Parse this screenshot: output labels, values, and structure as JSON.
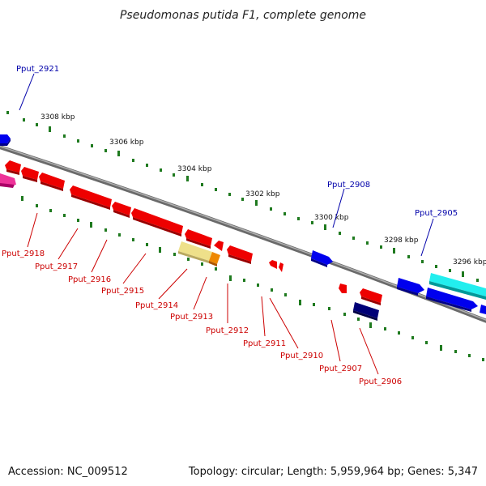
{
  "title": "Pseudomonas putida F1, complete genome",
  "footer": {
    "accession": "Accession: NC_009512",
    "summary": "Topology: circular; Length: 5,959,964 bp; Genes: 5,347"
  },
  "colors": {
    "backbone": "#8a8a8a",
    "tick": "#1f7a1f",
    "label_forward": "#0000aa",
    "label_reverse": "#cc0000"
  },
  "scale_labels": [
    "3308 kbp",
    "3306 kbp",
    "3304 kbp",
    "3302 kbp",
    "3300 kbp",
    "3298 kbp",
    "3296 kbp"
  ],
  "genes": [
    {
      "id": "Pput_2921",
      "strand": "forward",
      "label": "Pput_2921",
      "color": "#0000ee"
    },
    {
      "id": "Pput_2908",
      "strand": "forward",
      "label": "Pput_2908",
      "color": "#0000ee"
    },
    {
      "id": "Pput_2905",
      "strand": "forward",
      "label": "Pput_2905",
      "color": "#0000ee"
    },
    {
      "id": "Pput_2918",
      "strand": "reverse",
      "label": "Pput_2918",
      "color": "#ee0000"
    },
    {
      "id": "Pput_2917",
      "strand": "reverse",
      "label": "Pput_2917",
      "color": "#ee0000"
    },
    {
      "id": "Pput_2916",
      "strand": "reverse",
      "label": "Pput_2916",
      "color": "#ee0000"
    },
    {
      "id": "Pput_2915",
      "strand": "reverse",
      "label": "Pput_2915",
      "color": "#ee0000"
    },
    {
      "id": "Pput_2914",
      "strand": "reverse",
      "label": "Pput_2914",
      "color": "#eedd88"
    },
    {
      "id": "Pput_2913",
      "strand": "reverse",
      "label": "Pput_2913",
      "color": "#ee8800"
    },
    {
      "id": "Pput_2912",
      "strand": "reverse",
      "label": "Pput_2912",
      "color": "#ee0000"
    },
    {
      "id": "Pput_2911",
      "strand": "reverse",
      "label": "Pput_2911",
      "color": "#ee0000"
    },
    {
      "id": "Pput_2910",
      "strand": "reverse",
      "label": "Pput_2910",
      "color": "#ee0000"
    },
    {
      "id": "Pput_2907",
      "strand": "reverse",
      "label": "Pput_2907",
      "color": "#ee0000"
    },
    {
      "id": "Pput_2906",
      "strand": "reverse",
      "label": "Pput_2906",
      "color": "#000077"
    }
  ]
}
